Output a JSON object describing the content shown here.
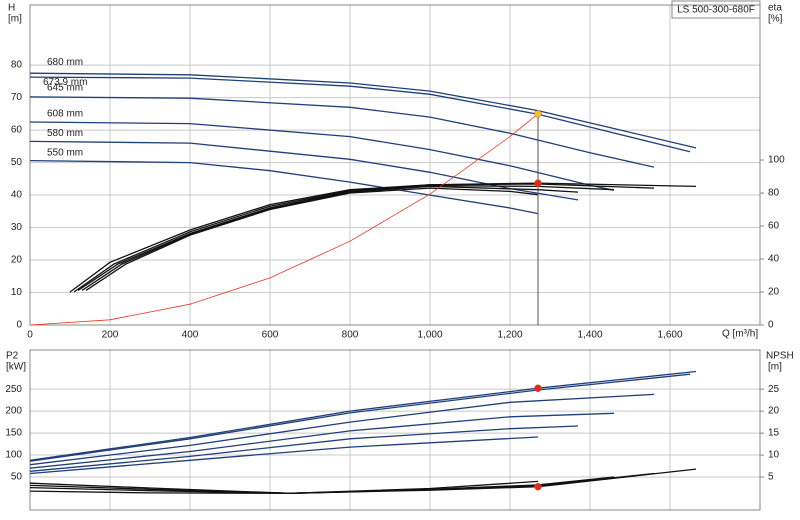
{
  "chart_data": [
    {
      "type": "line",
      "title": "LS 500-300-680F",
      "xlabel": "Q [m³/h]",
      "ylabel": "H",
      "yunit": "[m]",
      "y2label": "eta",
      "y2unit": "[%]",
      "xlim": [
        0,
        1825
      ],
      "ylim": [
        0,
        98.5
      ],
      "y2lim": [
        0,
        194
      ],
      "grid": true,
      "xticks": [
        0,
        200,
        400,
        600,
        800,
        {
          "value": 1000,
          "label": "1,000"
        },
        {
          "value": 1200,
          "label": "1,200"
        },
        {
          "value": 1400,
          "label": "1,400"
        },
        {
          "value": 1600,
          "label": "1,600"
        }
      ],
      "yticks": [
        0,
        10,
        20,
        30,
        40,
        50,
        60,
        70,
        80
      ],
      "y2ticks": [
        0,
        20,
        40,
        60,
        80,
        100
      ],
      "series": [
        {
          "name": "680 mm",
          "color": "#1f3f7a",
          "x": [
            0,
            400,
            800,
            1000,
            1270,
            1665
          ],
          "values": [
            77.5,
            77,
            74.5,
            72,
            66,
            54.5
          ]
        },
        {
          "name": "673.9 mm",
          "color": "#1f3f7a",
          "x": [
            0,
            400,
            800,
            1000,
            1270,
            1650
          ],
          "values": [
            76.3,
            76,
            73.5,
            71,
            64.9,
            53.3
          ]
        },
        {
          "name": "645 mm",
          "color": "#1f3f7a",
          "x": [
            0,
            400,
            800,
            1000,
            1200,
            1400,
            1560
          ],
          "values": [
            70.2,
            69.8,
            67,
            64,
            59,
            53,
            48.6
          ]
        },
        {
          "name": "608 mm",
          "color": "#1f3f7a",
          "x": [
            0,
            400,
            800,
            1000,
            1200,
            1400,
            1460
          ],
          "values": [
            62.5,
            62,
            58,
            54,
            49,
            43,
            41.5
          ]
        },
        {
          "name": "580 mm",
          "color": "#1f3f7a",
          "x": [
            0,
            400,
            800,
            1000,
            1200,
            1370
          ],
          "values": [
            56.5,
            56,
            51,
            47,
            42,
            38.5
          ]
        },
        {
          "name": "550 mm",
          "color": "#1f3f7a",
          "x": [
            0,
            400,
            600,
            800,
            1000,
            1200,
            1270
          ],
          "values": [
            50.6,
            50,
            47.5,
            44,
            40,
            36,
            34.3
          ]
        },
        {
          "color": "#111111",
          "axis": "y2",
          "x": [
            100,
            200,
            400,
            600,
            800,
            1000,
            1270,
            1665
          ],
          "values": [
            20,
            38,
            57.6,
            73,
            82,
            85,
            86,
            84
          ]
        },
        {
          "color": "#111111",
          "axis": "y2",
          "x": [
            110,
            210,
            400,
            600,
            800,
            1000,
            1270,
            1560
          ],
          "values": [
            20,
            37,
            56.5,
            72,
            81.5,
            85,
            85.5,
            83
          ]
        },
        {
          "color": "#111111",
          "axis": "y2",
          "x": [
            120,
            220,
            400,
            600,
            800,
            1000,
            1270,
            1460
          ],
          "values": [
            21,
            37,
            55.5,
            71,
            81,
            84.5,
            84,
            82
          ]
        },
        {
          "color": "#111111",
          "axis": "y2",
          "x": [
            130,
            230,
            400,
            600,
            800,
            1000,
            1270,
            1370
          ],
          "values": [
            21,
            37,
            55,
            70.5,
            80.5,
            84,
            82,
            80.6
          ]
        },
        {
          "color": "#111111",
          "axis": "y2",
          "x": [
            140,
            240,
            400,
            600,
            800,
            1000,
            1200,
            1270
          ],
          "values": [
            21,
            37,
            54.5,
            70,
            80,
            83,
            81,
            79
          ]
        },
        {
          "color": "#ee3322",
          "x": [
            0,
            200,
            400,
            600,
            800,
            1000,
            1200,
            1270
          ],
          "values": [
            0,
            1.6,
            6.4,
            14.5,
            25.8,
            40.3,
            58,
            65
          ]
        },
        {
          "color": "#f5c030",
          "marker": true,
          "drop_line": true,
          "x": [
            1270
          ],
          "values": [
            65
          ]
        },
        {
          "color": "#ee2222",
          "marker": true,
          "axis": "y2",
          "x": [
            1270
          ],
          "values": [
            86
          ]
        }
      ]
    },
    {
      "type": "line",
      "ylabel": "P2",
      "yunit": "[kW]",
      "y2label": "NPSH",
      "y2unit": "[m]",
      "xlim": [
        0,
        1825
      ],
      "ylim": [
        -25,
        339
      ],
      "y2lim": [
        -2.5,
        33.9
      ],
      "grid": true,
      "xticks": [
        0,
        200,
        400,
        600,
        800,
        1000,
        1200,
        1400,
        1600
      ],
      "yticks": [
        50,
        100,
        150,
        200,
        250
      ],
      "y2ticks": [
        5,
        10,
        15,
        20,
        25
      ],
      "series": [
        {
          "color": "#1f3f7a",
          "x": [
            0,
            400,
            800,
            1270,
            1665
          ],
          "values": [
            88,
            140,
            200,
            252,
            290
          ]
        },
        {
          "color": "#1f3f7a",
          "x": [
            0,
            400,
            800,
            1270,
            1650
          ],
          "values": [
            86,
            137,
            196,
            248,
            284
          ]
        },
        {
          "color": "#1f3f7a",
          "x": [
            0,
            400,
            800,
            1200,
            1560
          ],
          "values": [
            78,
            122,
            175,
            220,
            238
          ]
        },
        {
          "color": "#1f3f7a",
          "x": [
            0,
            400,
            800,
            1200,
            1460
          ],
          "values": [
            70,
            108,
            155,
            187,
            195
          ]
        },
        {
          "color": "#1f3f7a",
          "x": [
            0,
            400,
            800,
            1200,
            1370
          ],
          "values": [
            63,
            97,
            137,
            160,
            166
          ]
        },
        {
          "color": "#1f3f7a",
          "x": [
            0,
            400,
            800,
            1270
          ],
          "values": [
            58,
            88,
            118,
            141
          ]
        },
        {
          "color": "#111111",
          "axis": "y2",
          "x": [
            0,
            300,
            650,
            1000,
            1270,
            1665
          ],
          "values": [
            3.6,
            2.5,
            1.3,
            2,
            2.8,
            6.8
          ]
        },
        {
          "color": "#111111",
          "axis": "y2",
          "x": [
            0,
            300,
            650,
            1000,
            1270,
            1560
          ],
          "values": [
            3.1,
            2.2,
            1.3,
            2.1,
            3,
            5.8
          ]
        },
        {
          "color": "#111111",
          "axis": "y2",
          "x": [
            0,
            300,
            650,
            1000,
            1270,
            1460
          ],
          "values": [
            2.6,
            1.9,
            1.3,
            2.2,
            3.2,
            5
          ]
        },
        {
          "color": "#111111",
          "axis": "y2",
          "x": [
            0,
            300,
            650,
            1000,
            1270
          ],
          "values": [
            1.8,
            1.4,
            1.3,
            2.4,
            4
          ]
        },
        {
          "color": "#ee2222",
          "marker": true,
          "x": [
            1270
          ],
          "values": [
            252
          ]
        },
        {
          "color": "#ee2222",
          "marker": true,
          "axis": "y2",
          "x": [
            1270
          ],
          "values": [
            2.8
          ]
        }
      ]
    }
  ]
}
